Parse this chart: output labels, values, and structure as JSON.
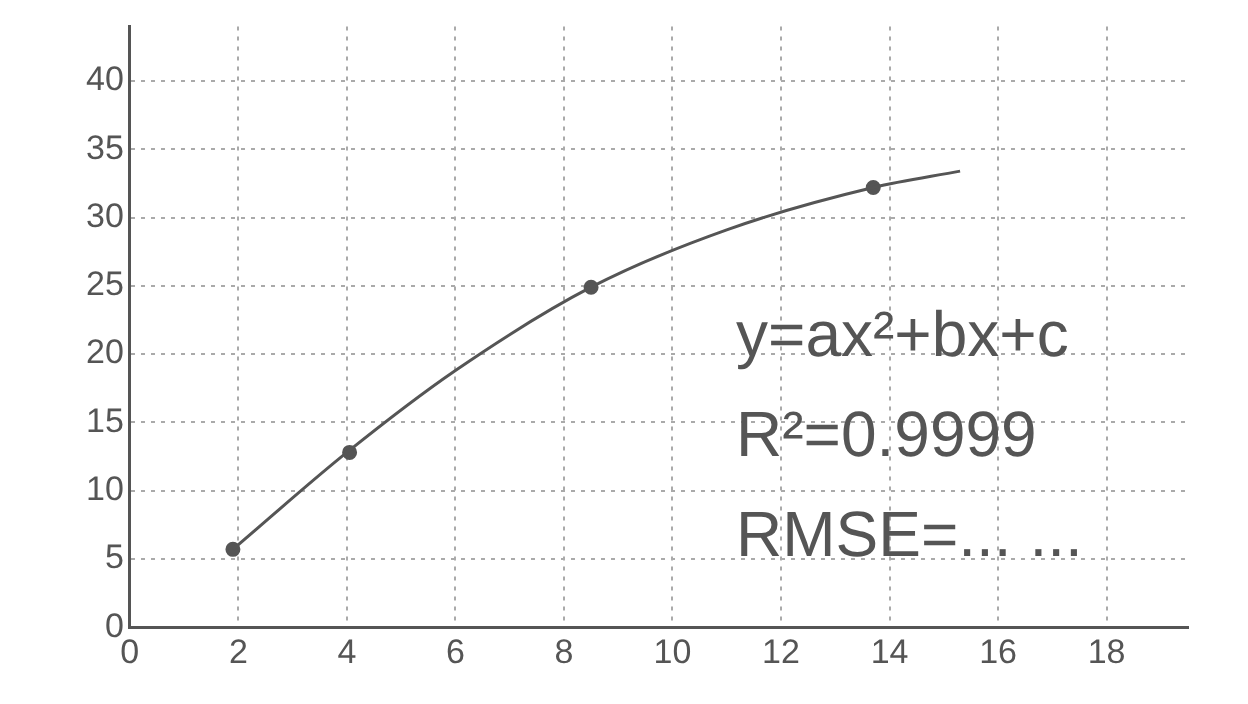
{
  "chart_data": {
    "type": "scatter",
    "xlim": [
      0,
      19.5
    ],
    "ylim": [
      0,
      44
    ],
    "xticks": [
      0,
      2,
      4,
      6,
      8,
      10,
      12,
      14,
      16,
      18
    ],
    "yticks": [
      0,
      5,
      10,
      15,
      20,
      25,
      30,
      35,
      40
    ],
    "grid": true,
    "marker": "circle",
    "legend": false,
    "series": [
      {
        "type": "line",
        "color": "#555555",
        "x": [
          1.9,
          4,
          6,
          8.5,
          11,
          13.7,
          15.3
        ],
        "values": [
          5.7,
          12.8,
          18.8,
          24.9,
          29.1,
          32.2,
          33.4
        ],
        "marker": "none"
      },
      {
        "color": "#555555",
        "x": [
          1.9,
          4.05,
          8.5,
          13.7
        ],
        "values": [
          5.7,
          12.8,
          24.9,
          32.2
        ]
      }
    ],
    "annotations": [
      "y=ax²+bx+c",
      "R²=0.9999",
      "RMSE=... ..."
    ]
  }
}
